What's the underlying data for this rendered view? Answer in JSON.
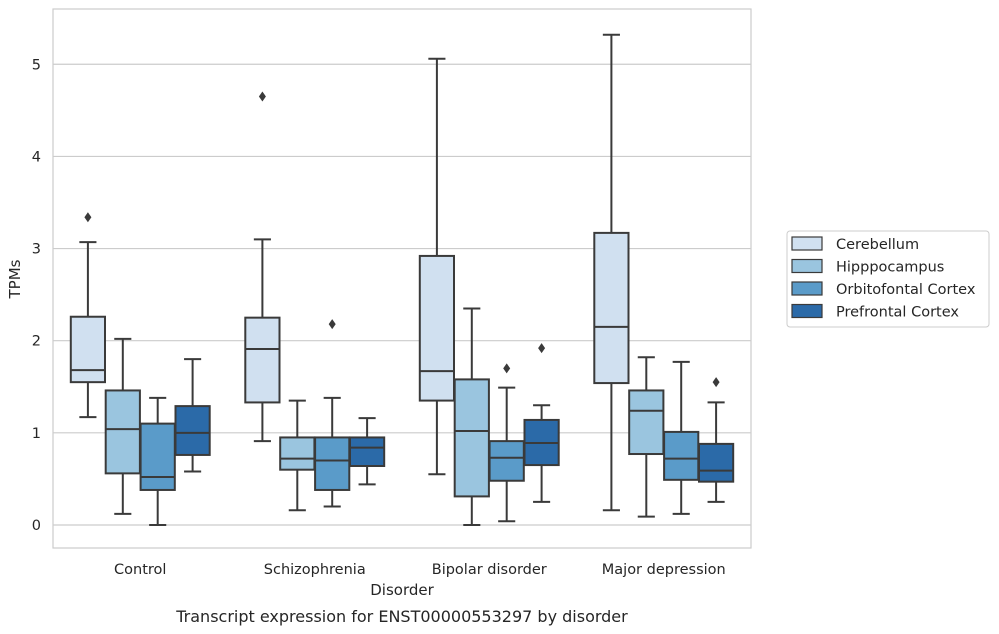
{
  "chart_data": {
    "type": "box",
    "caption": "Transcript expression for ENST00000553297 by disorder",
    "xlabel": "Disorder",
    "ylabel": "TPMs",
    "ylim": [
      -0.25,
      5.6
    ],
    "yticks": [
      0,
      1,
      2,
      3,
      4,
      5
    ],
    "grid": "horizontal",
    "legend_position": "right",
    "categories": [
      "Control",
      "Schizophrenia",
      "Bipolar disorder",
      "Major depression"
    ],
    "series": [
      {
        "name": "Cerebellum",
        "color": "#d0e0f0",
        "boxes": [
          {
            "whisker_low": 1.17,
            "q1": 1.55,
            "median": 1.68,
            "q3": 2.26,
            "whisker_high": 3.07,
            "outliers": [
              3.34
            ]
          },
          {
            "whisker_low": 0.91,
            "q1": 1.33,
            "median": 1.91,
            "q3": 2.25,
            "whisker_high": 3.1,
            "outliers": [
              4.65
            ]
          },
          {
            "whisker_low": 0.55,
            "q1": 1.35,
            "median": 1.67,
            "q3": 2.92,
            "whisker_high": 5.06,
            "outliers": []
          },
          {
            "whisker_low": 0.16,
            "q1": 1.54,
            "median": 2.15,
            "q3": 3.17,
            "whisker_high": 5.32,
            "outliers": []
          }
        ]
      },
      {
        "name": "Hipppocampus",
        "color": "#9ac5df",
        "boxes": [
          {
            "whisker_low": 0.12,
            "q1": 0.56,
            "median": 1.04,
            "q3": 1.46,
            "whisker_high": 2.02,
            "outliers": []
          },
          {
            "whisker_low": 0.16,
            "q1": 0.6,
            "median": 0.72,
            "q3": 0.95,
            "whisker_high": 1.35,
            "outliers": []
          },
          {
            "whisker_low": 0.0,
            "q1": 0.31,
            "median": 1.02,
            "q3": 1.58,
            "whisker_high": 2.35,
            "outliers": []
          },
          {
            "whisker_low": 0.09,
            "q1": 0.77,
            "median": 1.24,
            "q3": 1.46,
            "whisker_high": 1.82,
            "outliers": []
          }
        ]
      },
      {
        "name": "Orbitofontal Cortex",
        "color": "#5a9bc9",
        "boxes": [
          {
            "whisker_low": 0.0,
            "q1": 0.38,
            "median": 0.52,
            "q3": 1.1,
            "whisker_high": 1.38,
            "outliers": []
          },
          {
            "whisker_low": 0.2,
            "q1": 0.38,
            "median": 0.7,
            "q3": 0.95,
            "whisker_high": 1.38,
            "outliers": [
              2.18
            ]
          },
          {
            "whisker_low": 0.04,
            "q1": 0.48,
            "median": 0.73,
            "q3": 0.91,
            "whisker_high": 1.49,
            "outliers": [
              1.7
            ]
          },
          {
            "whisker_low": 0.12,
            "q1": 0.49,
            "median": 0.72,
            "q3": 1.01,
            "whisker_high": 1.77,
            "outliers": []
          }
        ]
      },
      {
        "name": "Prefrontal Cortex",
        "color": "#2b6aa8",
        "boxes": [
          {
            "whisker_low": 0.58,
            "q1": 0.76,
            "median": 1.0,
            "q3": 1.29,
            "whisker_high": 1.8,
            "outliers": []
          },
          {
            "whisker_low": 0.44,
            "q1": 0.64,
            "median": 0.84,
            "q3": 0.95,
            "whisker_high": 1.16,
            "outliers": []
          },
          {
            "whisker_low": 0.25,
            "q1": 0.65,
            "median": 0.89,
            "q3": 1.14,
            "whisker_high": 1.3,
            "outliers": [
              1.92
            ]
          },
          {
            "whisker_low": 0.25,
            "q1": 0.47,
            "median": 0.59,
            "q3": 0.88,
            "whisker_high": 1.33,
            "outliers": [
              1.55
            ]
          }
        ]
      }
    ]
  }
}
